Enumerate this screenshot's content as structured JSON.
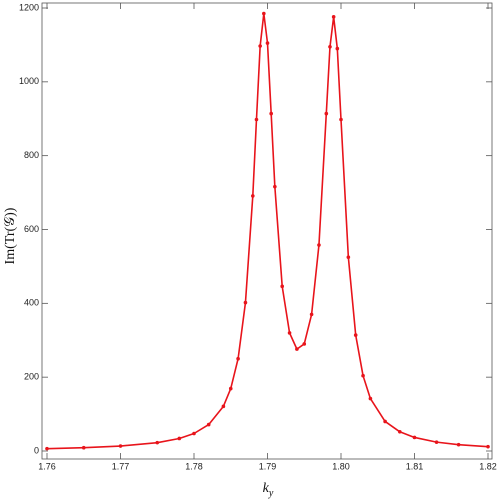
{
  "chart_data": {
    "type": "line",
    "ylabel": "Im(Tr(𝒢))",
    "xlabel": "k",
    "xlabel_subscript": "y",
    "x": [
      1.76,
      1.765,
      1.77,
      1.775,
      1.778,
      1.78,
      1.782,
      1.784,
      1.785,
      1.786,
      1.787,
      1.788,
      1.7885,
      1.789,
      1.7895,
      1.79,
      1.7905,
      1.791,
      1.792,
      1.793,
      1.794,
      1.795,
      1.796,
      1.797,
      1.798,
      1.7985,
      1.799,
      1.7995,
      1.8,
      1.801,
      1.802,
      1.803,
      1.804,
      1.806,
      1.808,
      1.81,
      1.813,
      1.816,
      1.82
    ],
    "y": [
      6.3,
      8.9,
      13.4,
      22.6,
      33.9,
      47.4,
      71.5,
      121,
      169,
      250,
      402,
      691,
      898,
      1097,
      1185,
      1105,
      914,
      716,
      446,
      320,
      276,
      290,
      370,
      558,
      914,
      1095,
      1176,
      1090,
      898,
      525,
      314,
      204,
      142,
      80,
      52,
      36.7,
      24,
      17.1,
      11.7
    ],
    "color": "#e8141b",
    "xlim": [
      1.76,
      1.82
    ],
    "ylim": [
      0,
      1200
    ],
    "xticks": [
      1.76,
      1.77,
      1.78,
      1.79,
      {
        "value": 1.8,
        "label": "1.80"
      },
      1.81,
      1.82
    ],
    "yticks": [
      0,
      200,
      400,
      600,
      800,
      1000,
      1200
    ]
  }
}
